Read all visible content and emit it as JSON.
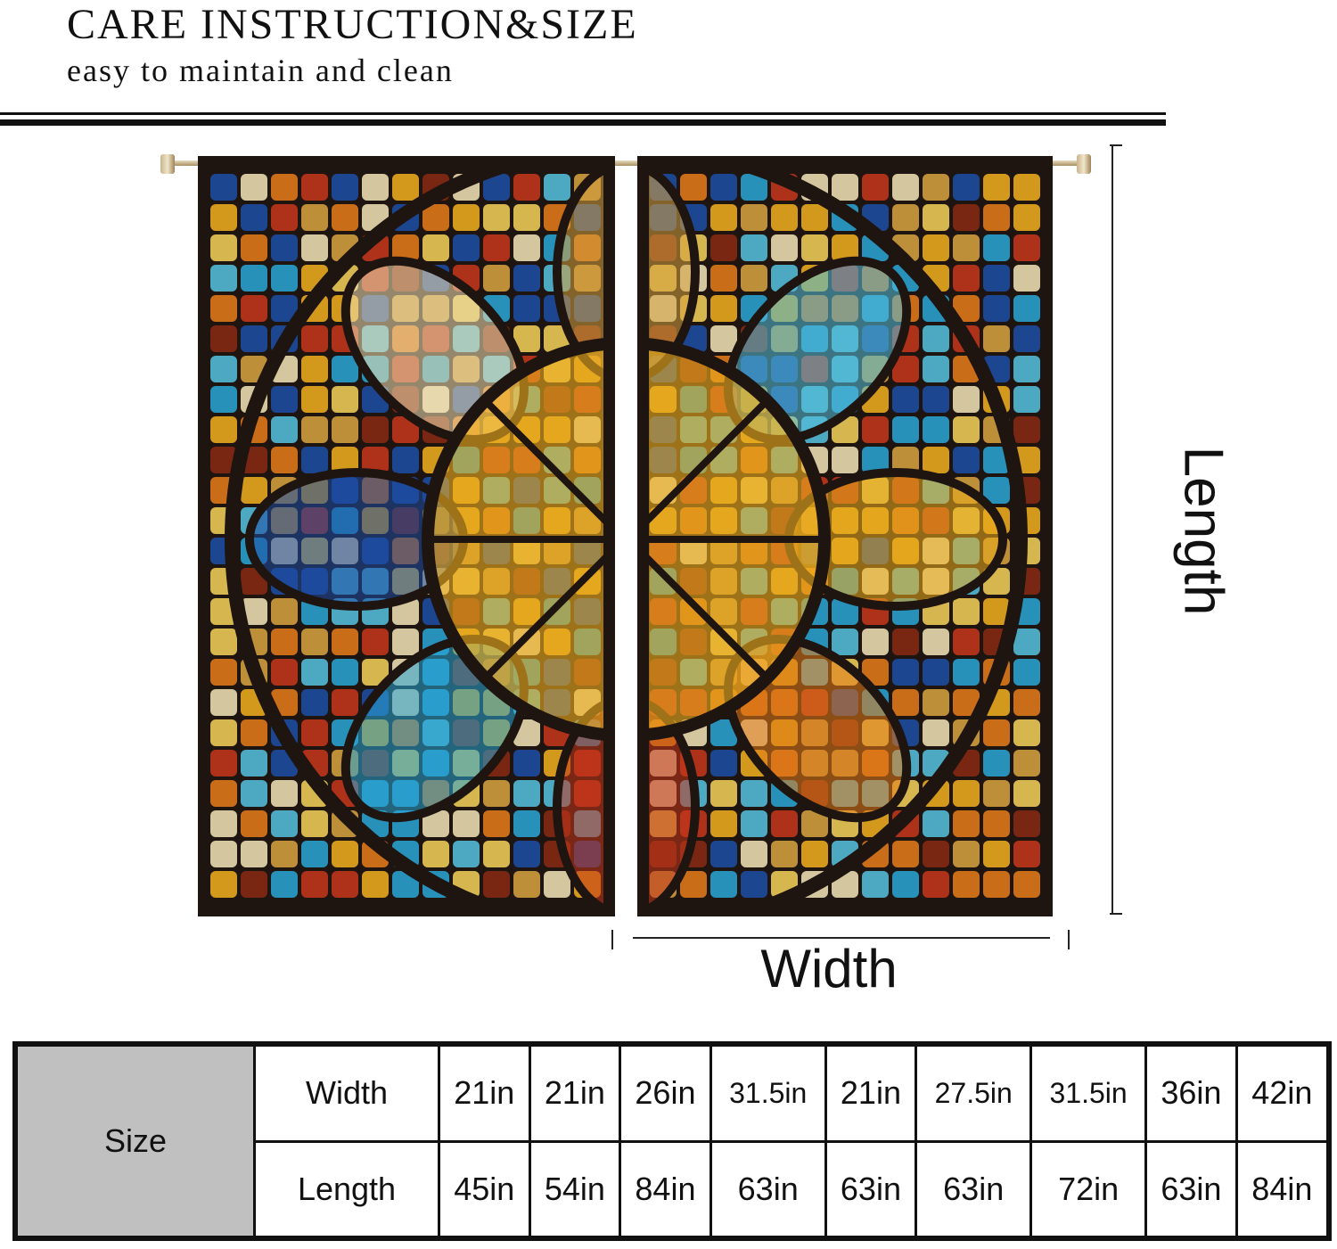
{
  "header": {
    "title": "CARE INSTRUCTION&SIZE",
    "subtitle": "easy to maintain and clean"
  },
  "diagram": {
    "length_label": "Length",
    "width_label": "Width"
  },
  "curtain_colors": [
    "#f2b01e",
    "#e87d1a",
    "#c8361c",
    "#2aa7d8",
    "#1d4fa8",
    "#f5e6b8",
    "#d9a441",
    "#55c3e0",
    "#8a2a14",
    "#f7d35a"
  ],
  "size_table": {
    "header": "Size",
    "rows": [
      {
        "label": "Width",
        "values": [
          "21in",
          "21in",
          "26in",
          "31.5in",
          "21in",
          "27.5in",
          "31.5in",
          "36in",
          "42in"
        ]
      },
      {
        "label": "Length",
        "values": [
          "45in",
          "54in",
          "84in",
          "63in",
          "63in",
          "63in",
          "72in",
          "63in",
          "84in"
        ]
      }
    ]
  }
}
